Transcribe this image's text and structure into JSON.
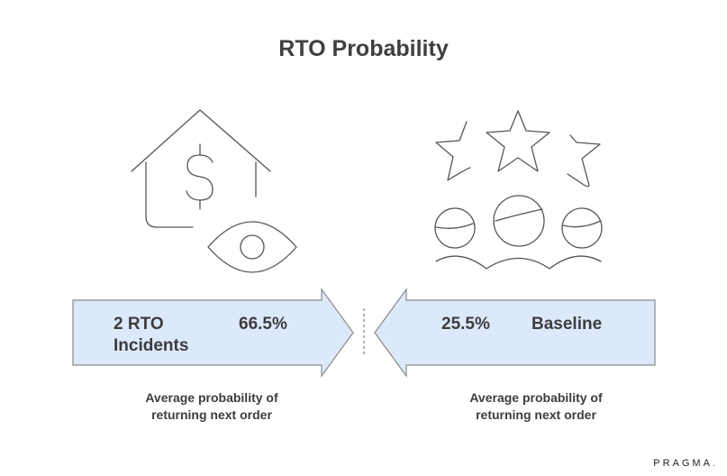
{
  "title": "RTO Probability",
  "left_arrow": {
    "label_line1": "2 RTO",
    "label_line2": "Incidents",
    "value": "66.5%",
    "caption_line1": "Average probability of",
    "caption_line2": "returning next order"
  },
  "right_arrow": {
    "value": "25.5%",
    "label": "Baseline",
    "caption_line1": "Average probability of",
    "caption_line2": "returning next order"
  },
  "brand": {
    "name": "PRAGMA",
    "dot": "."
  },
  "icons": {
    "left": "house-dollar-eye-icon",
    "right": "stars-customers-icon"
  },
  "colors": {
    "arrow_fill": "#dce9fb",
    "arrow_stroke": "#8a8a8a",
    "brand_dot": "#2f7fd1"
  }
}
